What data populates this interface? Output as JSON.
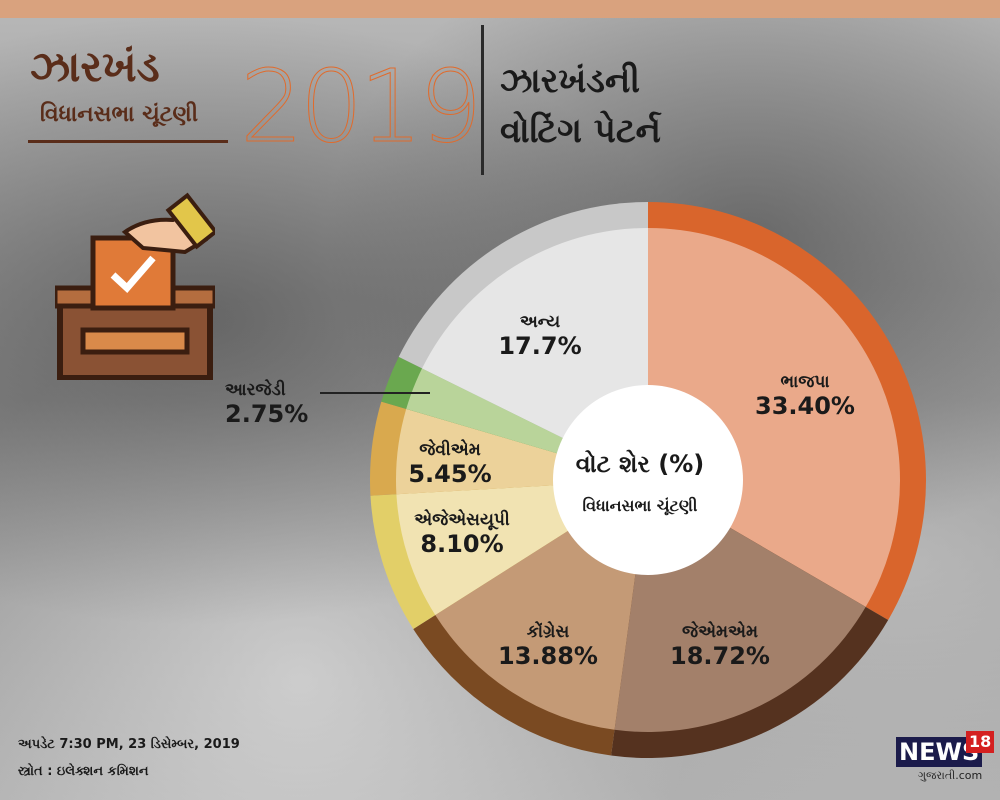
{
  "header": {
    "state": "ઝારખંડ",
    "subtitle": "વિધાનસભા ચૂંટણી",
    "year": "2019",
    "title_line1": "ઝારખંડની",
    "title_line2": "વોટિંગ પેટર્ન"
  },
  "colors": {
    "accent": "#e06b2c",
    "dark_brown": "#5a2d1a"
  },
  "chart_data": {
    "type": "pie",
    "title": "વોટ શેર (%)",
    "subtitle": "વિધાનસભા ચૂંટણી",
    "slices": [
      {
        "name": "ભાજપા",
        "value": 33.4,
        "display": "33.40%",
        "inner": "#eaa98a",
        "outer": "#d9652c"
      },
      {
        "name": "જેએમએમ",
        "value": 18.72,
        "display": "18.72%",
        "inner": "#a3806a",
        "outer": "#55321f"
      },
      {
        "name": "કોંગ્રેસ",
        "value": 13.88,
        "display": "13.88%",
        "inner": "#c49a76",
        "outer": "#7a4a22"
      },
      {
        "name": "એજેએસયૂપી",
        "value": 8.1,
        "display": "8.10%",
        "inner": "#f1e3b2",
        "outer": "#e2cf68"
      },
      {
        "name": "જેવીએમ",
        "value": 5.45,
        "display": "5.45%",
        "inner": "#ecd29a",
        "outer": "#d9a94e"
      },
      {
        "name": "આરજેડી",
        "value": 2.75,
        "display": "2.75%",
        "inner": "#b9d49a",
        "outer": "#6aa84f"
      },
      {
        "name": "અન્ય",
        "value": 17.7,
        "display": "17.7%",
        "inner": "#e6e6e6",
        "outer": "#c8c8c8"
      }
    ]
  },
  "footer": {
    "updated": "અપડેટ 7:30 PM, 23 ડિસેમ્બર, 2019",
    "source": "સ્ત્રોત : ઇલેક્શન કમિશન"
  },
  "logo": {
    "brand": "NEWS",
    "number": "18",
    "site": "ગુજરાતી.com"
  }
}
